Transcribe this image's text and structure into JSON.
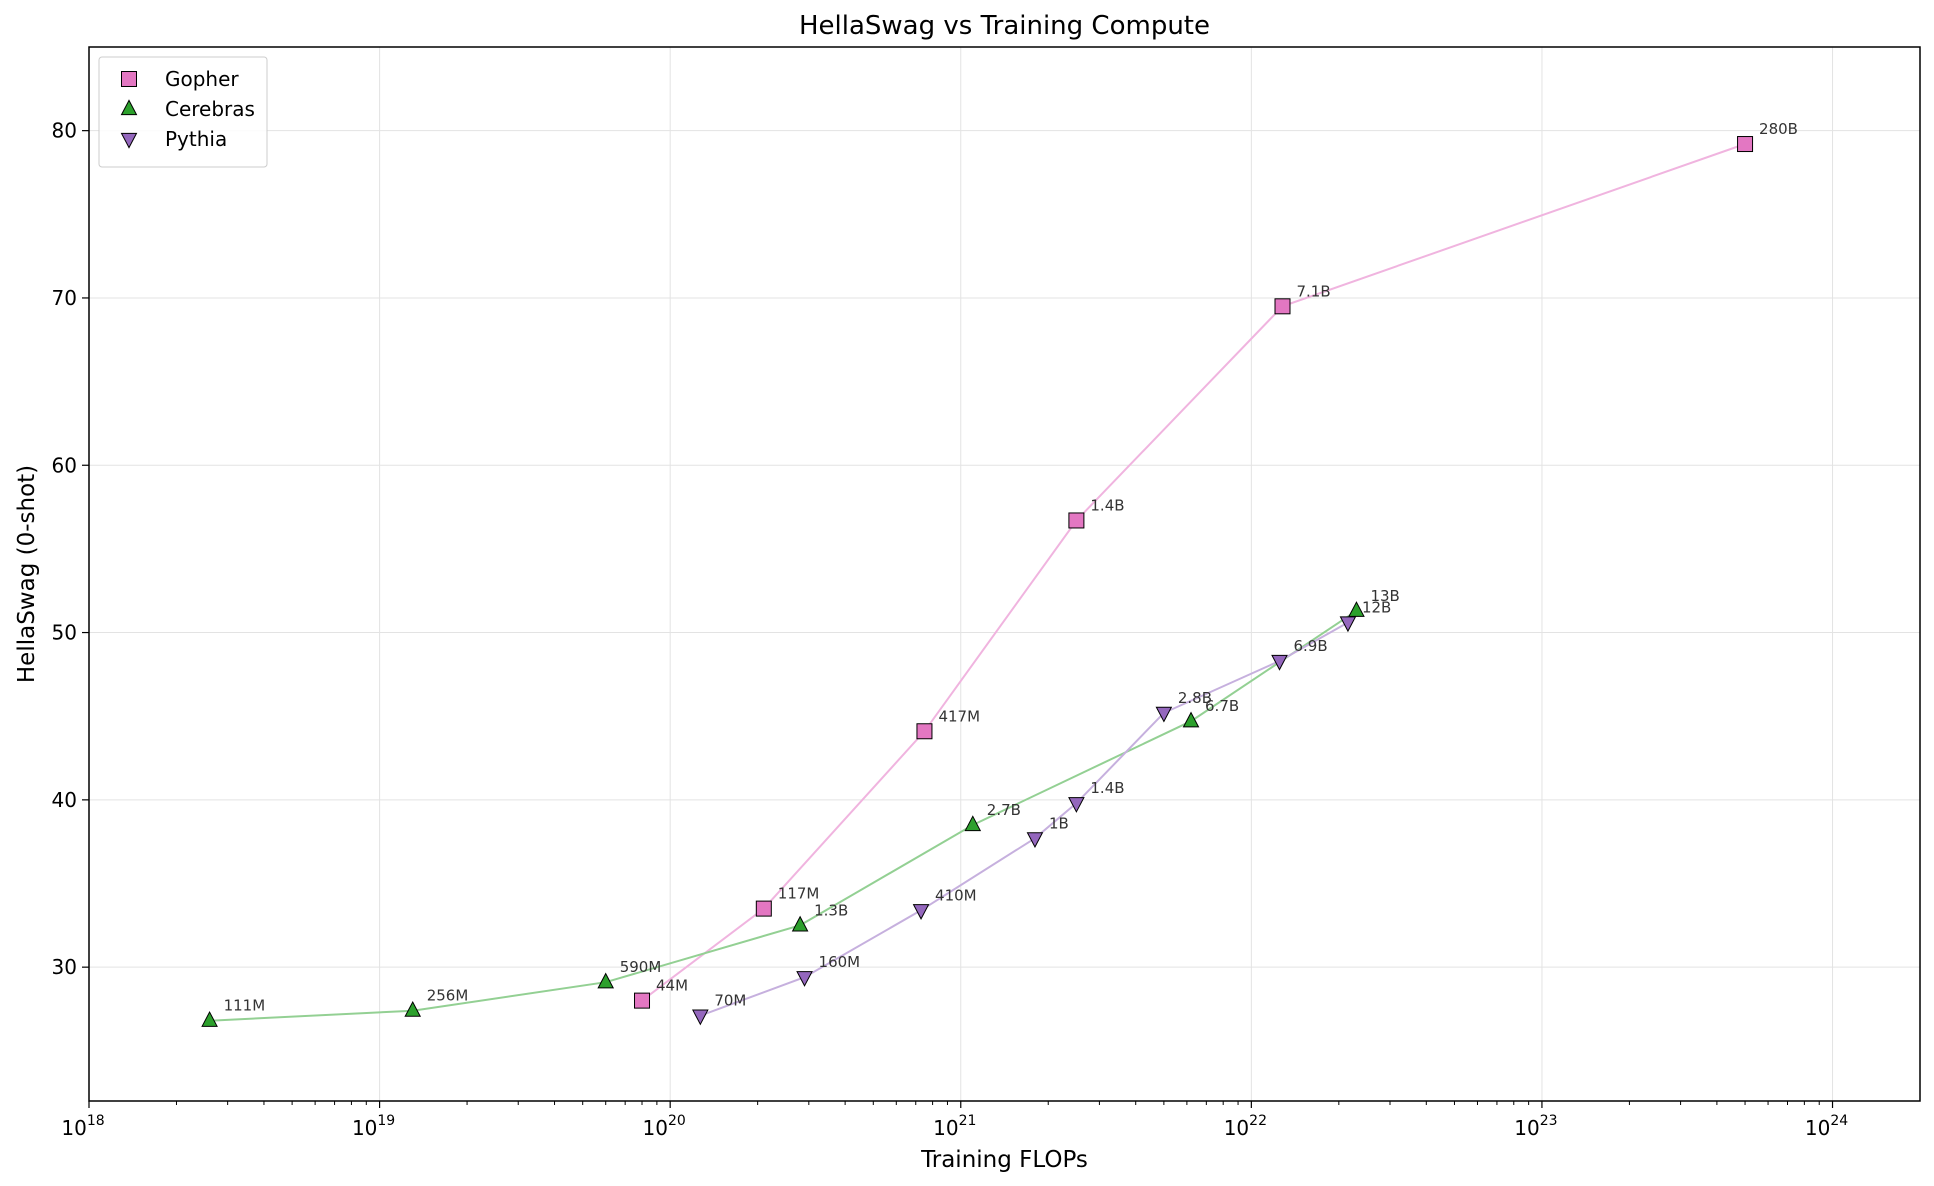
{
  "chart_data": {
    "type": "scatter",
    "title": "HellaSwag vs Training Compute",
    "xlabel": "Training FLOPs",
    "ylabel": "HellaSwag (0-shot)",
    "x_scale": "log",
    "xlim": [
      1e+18,
      2e+24
    ],
    "ylim": [
      22,
      85
    ],
    "x_ticks": [
      {
        "value": 1e+18,
        "label": "10",
        "exp": "18"
      },
      {
        "value": 1e+19,
        "label": "10",
        "exp": "19"
      },
      {
        "value": 1e+20,
        "label": "10",
        "exp": "20"
      },
      {
        "value": 1e+21,
        "label": "10",
        "exp": "21"
      },
      {
        "value": 1e+22,
        "label": "10",
        "exp": "22"
      },
      {
        "value": 1e+23,
        "label": "10",
        "exp": "23"
      },
      {
        "value": 1e+24,
        "label": "10",
        "exp": "24"
      }
    ],
    "y_ticks": [
      30,
      40,
      50,
      60,
      70,
      80
    ],
    "grid": true,
    "legend_position": "top-left",
    "series": [
      {
        "name": "Gopher",
        "marker": "square",
        "color": "#e377c2",
        "line_color": "#f0b4df",
        "points": [
          {
            "x": 8e+19,
            "y": 28.0,
            "label": "44M"
          },
          {
            "x": 2.1e+20,
            "y": 33.5,
            "label": "117M"
          },
          {
            "x": 7.5e+20,
            "y": 44.1,
            "label": "417M"
          },
          {
            "x": 2.5e+21,
            "y": 56.7,
            "label": "1.4B"
          },
          {
            "x": 1.28e+22,
            "y": 69.5,
            "label": "7.1B"
          },
          {
            "x": 5e+23,
            "y": 79.2,
            "label": "280B"
          }
        ]
      },
      {
        "name": "Cerebras",
        "marker": "triangle-up",
        "color": "#2ca02c",
        "line_color": "#93d093",
        "points": [
          {
            "x": 2.6e+18,
            "y": 26.8,
            "label": "111M"
          },
          {
            "x": 1.3e+19,
            "y": 27.4,
            "label": "256M"
          },
          {
            "x": 6e+19,
            "y": 29.1,
            "label": "590M"
          },
          {
            "x": 2.8e+20,
            "y": 32.5,
            "label": "1.3B"
          },
          {
            "x": 1.1e+21,
            "y": 38.5,
            "label": "2.7B"
          },
          {
            "x": 6.2e+21,
            "y": 44.7,
            "label": "6.7B"
          },
          {
            "x": 2.3e+22,
            "y": 51.3,
            "label": "13B"
          }
        ]
      },
      {
        "name": "Pythia",
        "marker": "triangle-down",
        "color": "#9467bd",
        "line_color": "#c6b0de",
        "points": [
          {
            "x": 1.27e+20,
            "y": 27.1,
            "label": "70M"
          },
          {
            "x": 2.9e+20,
            "y": 29.4,
            "label": "160M"
          },
          {
            "x": 7.3e+20,
            "y": 33.4,
            "label": "410M"
          },
          {
            "x": 1.8e+21,
            "y": 37.7,
            "label": "1B"
          },
          {
            "x": 2.5e+21,
            "y": 39.8,
            "label": "1.4B"
          },
          {
            "x": 5e+21,
            "y": 45.2,
            "label": "2.8B"
          },
          {
            "x": 1.25e+22,
            "y": 48.3,
            "label": "6.9B"
          },
          {
            "x": 2.15e+22,
            "y": 50.6,
            "label": "12B"
          }
        ]
      }
    ]
  }
}
